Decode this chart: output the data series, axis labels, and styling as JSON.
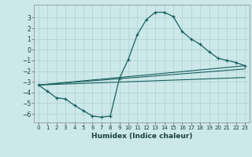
{
  "xlabel": "Humidex (Indice chaleur)",
  "xlim": [
    -0.5,
    23.5
  ],
  "ylim": [
    -6.8,
    4.2
  ],
  "yticks": [
    3,
    2,
    1,
    0,
    -1,
    -2,
    -3,
    -4,
    -5,
    -6
  ],
  "xticks": [
    0,
    1,
    2,
    3,
    4,
    5,
    6,
    7,
    8,
    9,
    10,
    11,
    12,
    13,
    14,
    15,
    16,
    17,
    18,
    19,
    20,
    21,
    22,
    23
  ],
  "bg_color": "#cce8e8",
  "grid_color": "#b0d0d0",
  "line_color": "#1a6060",
  "line1_x": [
    0,
    1,
    2,
    3,
    4,
    5,
    6,
    7,
    8,
    9,
    10,
    11,
    12,
    13,
    14,
    15,
    16,
    17,
    18,
    19,
    20,
    21,
    22,
    23
  ],
  "line1_y": [
    -3.3,
    -3.9,
    -4.5,
    -4.6,
    -5.2,
    -5.7,
    -6.2,
    -6.3,
    -6.2,
    -2.7,
    -0.9,
    1.4,
    2.8,
    3.5,
    3.5,
    3.1,
    1.7,
    1.0,
    0.5,
    -0.2,
    -0.8,
    -1.0,
    -1.2,
    -1.5
  ],
  "line2_x": [
    0,
    23
  ],
  "line2_y": [
    -3.3,
    -1.5
  ],
  "line3_x": [
    0,
    23
  ],
  "line3_y": [
    -3.3,
    -1.8
  ],
  "line4_x": [
    0,
    23
  ],
  "line4_y": [
    -3.3,
    -2.6
  ]
}
